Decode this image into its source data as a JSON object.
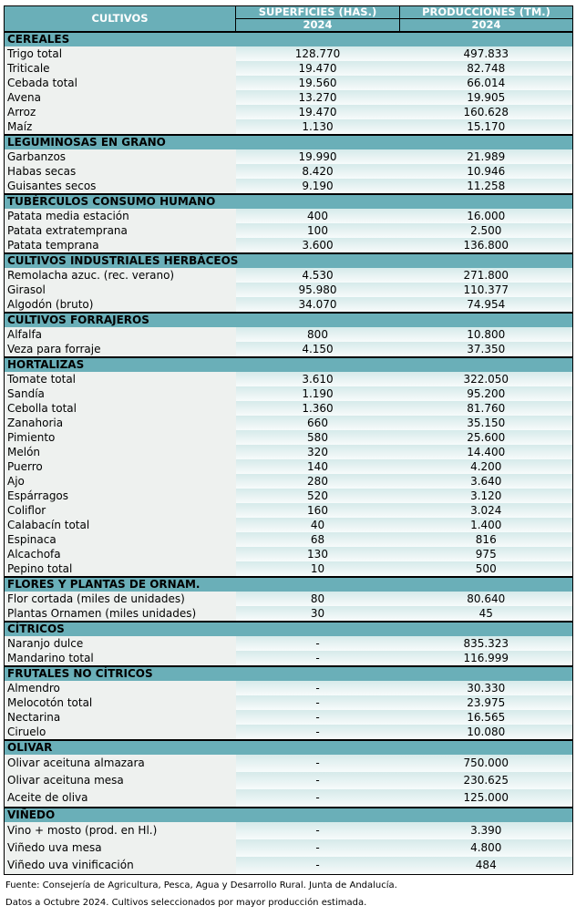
{
  "header": {
    "col1": "CULTIVOS",
    "col2": "SUPERFICIES (HAS.)",
    "col3": "PRODUCCIONES (TM.)",
    "year2": "2024",
    "year3": "2024"
  },
  "colors": {
    "header_bg": "#6aafb8",
    "header_text": "#ffffff",
    "value_bg": "#d6eaea"
  },
  "sections": [
    {
      "title": "CEREALES",
      "rows": [
        [
          "Trigo total",
          "128.770",
          "497.833"
        ],
        [
          "Triticale",
          "19.470",
          "82.748"
        ],
        [
          "Cebada total",
          "19.560",
          "66.014"
        ],
        [
          "Avena",
          "13.270",
          "19.905"
        ],
        [
          "Arroz",
          "19.470",
          "160.628"
        ],
        [
          "Maíz",
          "1.130",
          "15.170"
        ]
      ]
    },
    {
      "title": "LEGUMINOSAS EN GRANO",
      "rows": [
        [
          "Garbanzos",
          "19.990",
          "21.989"
        ],
        [
          "Habas secas",
          "8.420",
          "10.946"
        ],
        [
          "Guisantes secos",
          "9.190",
          "11.258"
        ]
      ]
    },
    {
      "title": "TUBÉRCULOS CONSUMO HUMANO",
      "rows": [
        [
          "Patata media estación",
          "400",
          "16.000"
        ],
        [
          "Patata extratemprana",
          "100",
          "2.500"
        ],
        [
          "Patata temprana",
          "3.600",
          "136.800"
        ]
      ]
    },
    {
      "title": "CULTIVOS INDUSTRIALES HERBÁCEOS",
      "rows": [
        [
          "Remolacha azuc. (rec. verano)",
          "4.530",
          "271.800"
        ],
        [
          "Girasol",
          "95.980",
          "110.377"
        ],
        [
          "Algodón (bruto)",
          "34.070",
          "74.954"
        ]
      ]
    },
    {
      "title": "CULTIVOS FORRAJEROS",
      "rows": [
        [
          "Alfalfa",
          "800",
          "10.800"
        ],
        [
          "Veza para forraje",
          "4.150",
          "37.350"
        ]
      ]
    },
    {
      "title": "HORTALIZAS",
      "rows": [
        [
          "Tomate total",
          "3.610",
          "322.050"
        ],
        [
          "Sandía",
          "1.190",
          "95.200"
        ],
        [
          "Cebolla total",
          "1.360",
          "81.760"
        ],
        [
          "Zanahoria",
          "660",
          "35.150"
        ],
        [
          "Pimiento",
          "580",
          "25.600"
        ],
        [
          "Melón",
          "320",
          "14.400"
        ],
        [
          "Puerro",
          "140",
          "4.200"
        ],
        [
          "Ajo",
          "280",
          "3.640"
        ],
        [
          "Espárragos",
          "520",
          "3.120"
        ],
        [
          "Coliflor",
          "160",
          "3.024"
        ],
        [
          "Calabacín total",
          "40",
          "1.400"
        ],
        [
          "Espinaca",
          "68",
          "816"
        ],
        [
          "Alcachofa",
          "130",
          "975"
        ],
        [
          "Pepino total",
          "10",
          "500"
        ]
      ]
    },
    {
      "title": "FLORES Y PLANTAS DE ORNAM.",
      "rows": [
        [
          "Flor cortada (miles de unidades)",
          "80",
          "80.640"
        ],
        [
          "Plantas Ornamen (miles unidades)",
          "30",
          "45"
        ]
      ]
    },
    {
      "title": "CÍTRICOS",
      "rows": [
        [
          "Naranjo dulce",
          "-",
          "835.323"
        ],
        [
          "Mandarino total",
          "-",
          "116.999"
        ]
      ]
    },
    {
      "title": "FRUTALES NO CÍTRICOS",
      "rows": [
        [
          "Almendro",
          "-",
          "30.330"
        ],
        [
          "Melocotón total",
          "-",
          "23.975"
        ],
        [
          "Nectarina",
          "-",
          "16.565"
        ],
        [
          "Ciruelo",
          "-",
          "10.080"
        ]
      ]
    },
    {
      "title": "OLIVAR",
      "tall": true,
      "rows": [
        [
          "Olivar aceituna almazara",
          "-",
          "750.000"
        ],
        [
          "Olivar aceituna mesa",
          "-",
          "230.625"
        ],
        [
          "Aceite de oliva",
          "-",
          "125.000"
        ]
      ]
    },
    {
      "title": "VIÑEDO",
      "tall": true,
      "rows": [
        [
          "Vino + mosto (prod. en Hl.)",
          "-",
          "3.390"
        ],
        [
          "Viñedo uva mesa",
          "-",
          "4.800"
        ],
        [
          "Viñedo uva vinificación",
          "-",
          "484"
        ]
      ]
    }
  ],
  "footer": {
    "source": "Fuente: Consejería de Agricultura, Pesca, Agua y Desarrollo Rural. Junta de Andalucía.",
    "note": "Datos a Octubre 2024. Cultivos seleccionados por mayor producción estimada."
  }
}
